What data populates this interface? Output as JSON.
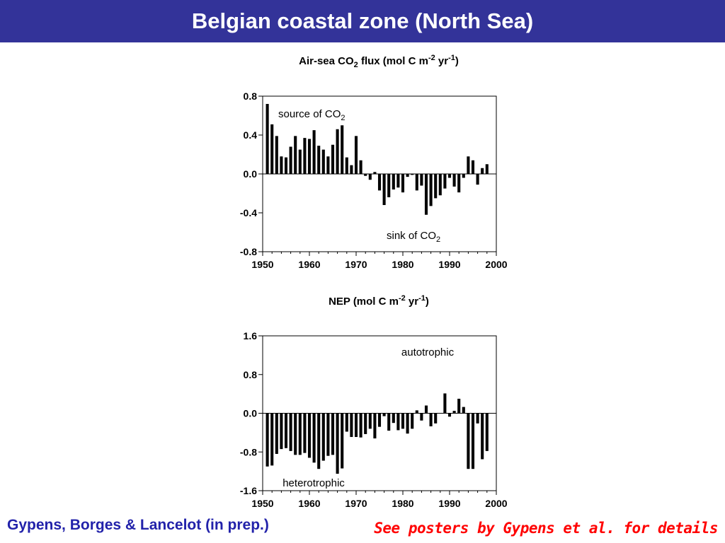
{
  "header": {
    "title": "Belgian coastal zone (North Sea)"
  },
  "footer": {
    "credit": "Gypens, Borges & Lancelot (in prep.)",
    "note": "See posters by Gypens et al. for details"
  },
  "colors": {
    "title_bar": "#333399",
    "title_text": "#ffffff",
    "bars": "#000000",
    "credit_text": "#2222aa",
    "note_text": "#ff0000"
  },
  "chart_data": [
    {
      "type": "bar",
      "title_parts": [
        "Air-sea CO",
        "2",
        " flux (mol C m",
        "-2",
        " yr",
        "-1",
        ")"
      ],
      "xlim": [
        1950,
        2000
      ],
      "xticks": [
        1950,
        1960,
        1970,
        1980,
        1990,
        2000
      ],
      "ylim": [
        -0.8,
        0.8
      ],
      "yticks": [
        "0.8",
        "0.4",
        "0.0",
        "-0.4",
        "-0.8"
      ],
      "grid": false,
      "annotations": [
        {
          "text": "source of CO",
          "sub": "2"
        },
        {
          "text": "sink of CO",
          "sub": "2"
        }
      ],
      "x": [
        1951,
        1952,
        1953,
        1954,
        1955,
        1956,
        1957,
        1958,
        1959,
        1960,
        1961,
        1962,
        1963,
        1964,
        1965,
        1966,
        1967,
        1968,
        1969,
        1970,
        1971,
        1972,
        1973,
        1974,
        1975,
        1976,
        1977,
        1978,
        1979,
        1980,
        1981,
        1982,
        1983,
        1984,
        1985,
        1986,
        1987,
        1988,
        1989,
        1990,
        1991,
        1992,
        1993,
        1994,
        1995,
        1996,
        1997,
        1998
      ],
      "values": [
        0.72,
        0.51,
        0.39,
        0.18,
        0.17,
        0.28,
        0.39,
        0.25,
        0.37,
        0.36,
        0.45,
        0.29,
        0.25,
        0.18,
        0.3,
        0.46,
        0.5,
        0.17,
        0.09,
        0.39,
        0.14,
        -0.02,
        -0.06,
        0.02,
        -0.17,
        -0.32,
        -0.24,
        -0.16,
        -0.14,
        -0.19,
        -0.03,
        -0.01,
        -0.17,
        -0.12,
        -0.42,
        -0.33,
        -0.25,
        -0.22,
        -0.15,
        -0.04,
        -0.13,
        -0.19,
        -0.04,
        0.18,
        0.14,
        -0.11,
        0.06,
        0.1
      ]
    },
    {
      "type": "bar",
      "title_parts": [
        "NEP (mol C m",
        "-2",
        " yr",
        "-1",
        ")"
      ],
      "xlim": [
        1950,
        2000
      ],
      "xticks": [
        1950,
        1960,
        1970,
        1980,
        1990,
        2000
      ],
      "ylim": [
        -1.6,
        1.6
      ],
      "yticks": [
        "1.6",
        "0.8",
        "0.0",
        "-0.8",
        "-1.6"
      ],
      "grid": false,
      "annotations": [
        {
          "text": "autotrophic"
        },
        {
          "text": "heterotrophic"
        }
      ],
      "x": [
        1951,
        1952,
        1953,
        1954,
        1955,
        1956,
        1957,
        1958,
        1959,
        1960,
        1961,
        1962,
        1963,
        1964,
        1965,
        1966,
        1967,
        1968,
        1969,
        1970,
        1971,
        1972,
        1973,
        1974,
        1975,
        1976,
        1977,
        1978,
        1979,
        1980,
        1981,
        1982,
        1983,
        1984,
        1985,
        1986,
        1987,
        1988,
        1989,
        1990,
        1991,
        1992,
        1993,
        1994,
        1995,
        1996,
        1997,
        1998
      ],
      "values": [
        -1.1,
        -1.08,
        -0.84,
        -0.74,
        -0.72,
        -0.78,
        -0.86,
        -0.86,
        -0.82,
        -0.92,
        -1.02,
        -1.15,
        -0.98,
        -0.88,
        -0.86,
        -1.25,
        -1.14,
        -0.38,
        -0.49,
        -0.49,
        -0.5,
        -0.43,
        -0.32,
        -0.52,
        -0.28,
        -0.06,
        -0.36,
        -0.2,
        -0.35,
        -0.32,
        -0.42,
        -0.32,
        0.06,
        -0.15,
        0.16,
        -0.27,
        -0.21,
        0.0,
        0.41,
        -0.07,
        0.05,
        0.3,
        0.13,
        -1.15,
        -1.15,
        -0.21,
        -0.95,
        -0.78
      ]
    }
  ]
}
